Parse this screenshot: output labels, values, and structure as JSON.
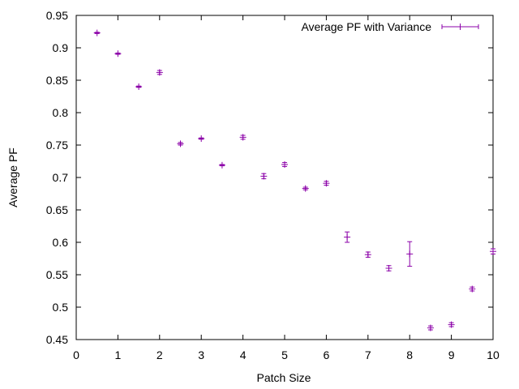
{
  "chart_data": {
    "type": "scatter",
    "title": "",
    "xlabel": "Patch Size",
    "ylabel": "Average PF",
    "xlim": [
      0,
      10
    ],
    "ylim": [
      0.45,
      0.95
    ],
    "xticks": [
      "0",
      "1",
      "2",
      "3",
      "4",
      "5",
      "6",
      "7",
      "8",
      "9",
      "10"
    ],
    "yticks": [
      "0.45",
      "0.5",
      "0.55",
      "0.6",
      "0.65",
      "0.7",
      "0.75",
      "0.8",
      "0.85",
      "0.9",
      "0.95"
    ],
    "grid": false,
    "legend_position": "top-right",
    "series": [
      {
        "name": "Average PF with Variance",
        "color": "#8b00a8",
        "points": [
          {
            "x": 0.5,
            "y": 0.923,
            "err": 0.001
          },
          {
            "x": 1.0,
            "y": 0.891,
            "err": 0.001
          },
          {
            "x": 1.5,
            "y": 0.84,
            "err": 0.001
          },
          {
            "x": 2.0,
            "y": 0.862,
            "err": 0.003
          },
          {
            "x": 2.5,
            "y": 0.752,
            "err": 0.002
          },
          {
            "x": 3.0,
            "y": 0.76,
            "err": 0.001
          },
          {
            "x": 3.5,
            "y": 0.719,
            "err": 0.001
          },
          {
            "x": 4.0,
            "y": 0.762,
            "err": 0.003
          },
          {
            "x": 4.5,
            "y": 0.702,
            "err": 0.004
          },
          {
            "x": 5.0,
            "y": 0.72,
            "err": 0.003
          },
          {
            "x": 5.5,
            "y": 0.683,
            "err": 0.002
          },
          {
            "x": 6.0,
            "y": 0.691,
            "err": 0.003
          },
          {
            "x": 6.5,
            "y": 0.608,
            "err": 0.008
          },
          {
            "x": 7.0,
            "y": 0.581,
            "err": 0.004
          },
          {
            "x": 7.5,
            "y": 0.56,
            "err": 0.004
          },
          {
            "x": 8.0,
            "y": 0.582,
            "err": 0.019
          },
          {
            "x": 8.5,
            "y": 0.468,
            "err": 0.003
          },
          {
            "x": 9.0,
            "y": 0.473,
            "err": 0.003
          },
          {
            "x": 9.5,
            "y": 0.528,
            "err": 0.003
          },
          {
            "x": 10.0,
            "y": 0.586,
            "err": 0.004
          }
        ]
      }
    ]
  }
}
